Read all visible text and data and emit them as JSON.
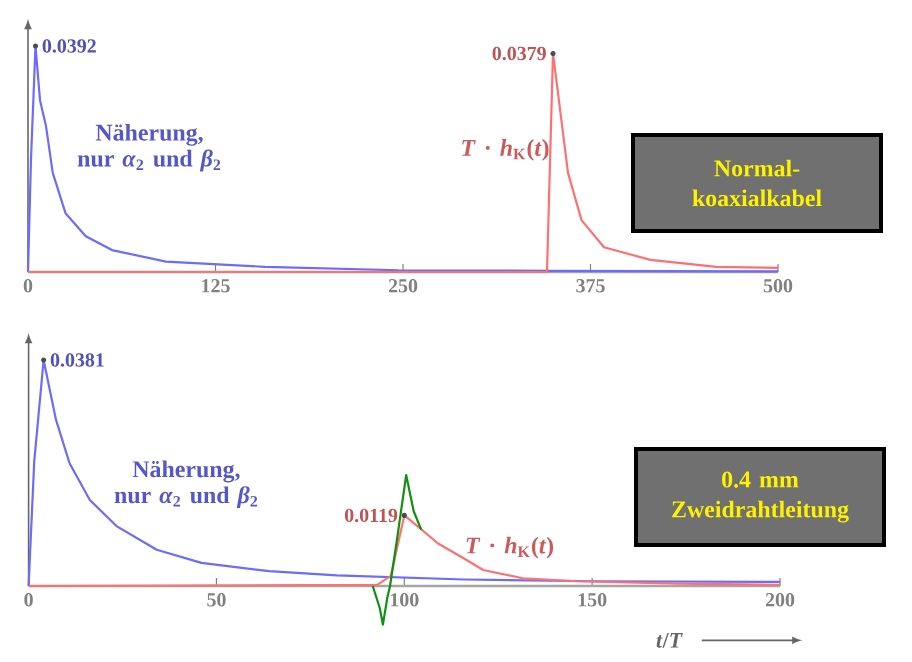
{
  "chart_data": [
    {
      "type": "line",
      "xlim": [
        0,
        500
      ],
      "xticks": [
        0,
        125,
        250,
        375,
        500
      ],
      "annotations": [
        "Normal-koaxialkabel"
      ],
      "series": [
        {
          "name": "Näherung, nur *α*$_{2}$ und *β*$_{2}$",
          "color": "#6b6bff",
          "x": [
            0,
            2,
            5,
            8,
            12,
            16.5,
            25,
            38.5,
            56,
            92,
            158,
            247,
            350,
            500
          ],
          "values": [
            0,
            0.0196,
            0.0392,
            0.0298,
            0.0253,
            0.0172,
            0.0102,
            0.0062,
            0.0038,
            0.0018,
            0.0009,
            0.0003,
            0.0002,
            0.0001
          ],
          "value_labels": [
            null,
            null,
            "0.0392",
            null,
            null,
            null,
            null,
            null,
            null,
            null,
            null,
            null,
            null,
            null
          ]
        },
        {
          "name": "*T* · *h*$_{K}$(*t*)",
          "color": "#ff7070",
          "x": [
            0,
            346,
            350,
            355.5,
            360,
            369,
            384,
            415,
            459,
            500
          ],
          "values": [
            0,
            0,
            0.0379,
            0.0265,
            0.0172,
            0.009,
            0.0043,
            0.0021,
            0.0009,
            0.0007
          ],
          "value_labels": [
            null,
            null,
            "0.0379",
            null,
            null,
            null,
            null,
            null,
            null,
            null
          ]
        }
      ]
    },
    {
      "type": "line",
      "xlim": [
        0,
        200
      ],
      "xticks": [
        0,
        50,
        100,
        150,
        200
      ],
      "xlabel": "*t*/*T*",
      "annotations": [
        "0.4 mm Zweidrahtleitung"
      ],
      "series": [
        {
          "name": "Näherung, nur *α*$_{2}$ und *β*$_{2}$",
          "color": "#6b6bff",
          "x": [
            0,
            1.5,
            4,
            7.3,
            10.9,
            16.3,
            23.4,
            34.1,
            46,
            64,
            82,
            116,
            150,
            200
          ],
          "values": [
            0,
            0.021,
            0.0381,
            0.028,
            0.0207,
            0.0145,
            0.0101,
            0.0061,
            0.0039,
            0.0025,
            0.0018,
            0.0011,
            0.0008,
            0.0007
          ],
          "value_labels": [
            null,
            null,
            "0.0381",
            null,
            null,
            null,
            null,
            null,
            null,
            null,
            null,
            null,
            null,
            null
          ]
        },
        {
          "name": "*T* · *h*$_{K}$(*t*)",
          "color": "#ff7070",
          "x": [
            0,
            92.8,
            96.4,
            100,
            103.5,
            108.9,
            116,
            121,
            131.5,
            146,
            173,
            200
          ],
          "values": [
            0,
            0.0002,
            0.0017,
            0.0119,
            0.0101,
            0.0072,
            0.0046,
            0.0027,
            0.0013,
            0.0008,
            0.0004,
            0.0002
          ],
          "value_labels": [
            null,
            null,
            null,
            "0.0119",
            null,
            null,
            null,
            null,
            null,
            null,
            null,
            null
          ]
        },
        {
          "color": "#109010",
          "x": [
            91.6,
            93.5,
            94.3,
            95.5,
            96.2,
            98,
            100.5,
            102.5,
            104.5
          ],
          "values": [
            0,
            -0.0038,
            -0.0065,
            -0.0019,
            0,
            0.0076,
            0.0187,
            0.0126,
            0.0095
          ]
        }
      ]
    }
  ]
}
